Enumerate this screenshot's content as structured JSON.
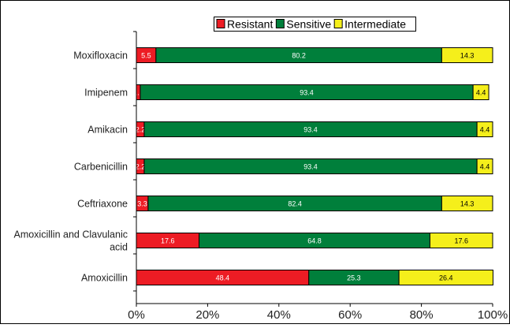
{
  "chart_data": {
    "type": "bar",
    "orientation": "horizontal",
    "stacked": true,
    "categories": [
      "Moxifloxacin",
      "Imipenem",
      "Amikacin",
      "Carbenicillin",
      "Ceftriaxone",
      "Amoxicillin and Clavulanic acid",
      "Amoxicillin"
    ],
    "category_label_lines": [
      [
        "Moxifloxacin"
      ],
      [
        "Imipenem"
      ],
      [
        "Amikacin"
      ],
      [
        "Carbenicillin"
      ],
      [
        "Ceftriaxone"
      ],
      [
        "Amoxicillin and Clavulanic",
        "acid"
      ],
      [
        "Amoxicillin"
      ]
    ],
    "series": [
      {
        "name": "Resistant",
        "color": "#ed1c24",
        "values": [
          5.5,
          1.1,
          2.2,
          2.2,
          3.3,
          17.6,
          48.4
        ],
        "labels": [
          "5.5",
          "1.1",
          "2.2",
          "2.2",
          "3.3",
          "17.6",
          "48.4"
        ]
      },
      {
        "name": "Sensitive",
        "color": "#007f3b",
        "values": [
          80.2,
          93.4,
          93.4,
          93.4,
          82.4,
          64.8,
          25.3
        ],
        "labels": [
          "80.2",
          "93.4",
          "93.4",
          "93.4",
          "82.4",
          "64.8",
          "25.3"
        ]
      },
      {
        "name": "Intermediate",
        "color": "#f5ef1b",
        "values": [
          14.3,
          4.4,
          4.4,
          4.4,
          14.3,
          17.6,
          26.4
        ],
        "labels": [
          "14.3",
          "4.4",
          "4.4",
          "4.4",
          "14.3",
          "17.6",
          "26.4"
        ]
      }
    ],
    "xlim": [
      0,
      100
    ],
    "xticks": [
      "0%",
      "20%",
      "40%",
      "60%",
      "80%",
      "100%"
    ],
    "xlabel": "",
    "ylabel": "",
    "title": "",
    "legend": "top-center",
    "grid": false
  }
}
